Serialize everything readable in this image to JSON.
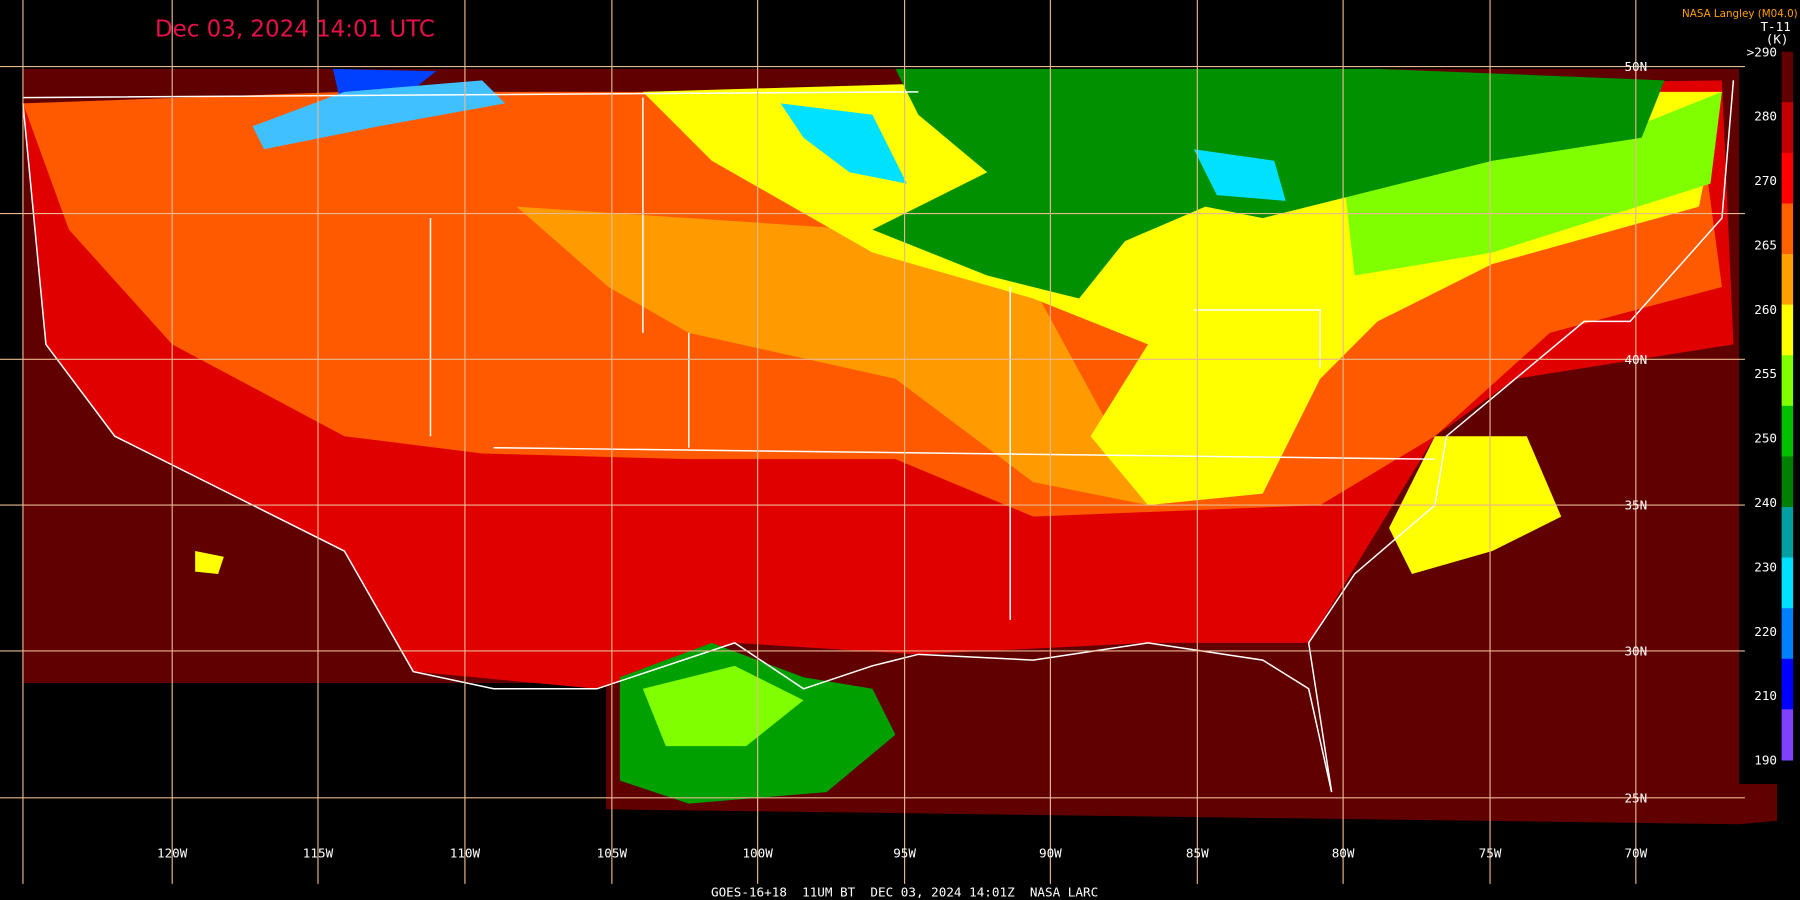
{
  "header": {
    "timestamp": "Dec 03, 2024 14:01 UTC",
    "source": "NASA Langley (M04.0)",
    "product": "T-11",
    "unit": "(K)"
  },
  "footer": "GOES-16+18  11UM BT  DEC 03, 2024 14:01Z  NASA LARC",
  "longitude_labels": [
    "120W",
    "115W",
    "110W",
    "105W",
    "100W",
    "95W",
    "90W",
    "85W",
    "80W",
    "75W",
    "70W"
  ],
  "latitude_labels": [
    "50N",
    "40N",
    "35N",
    "30N",
    "25N"
  ],
  "colorbar": {
    "labels": [
      ">290",
      "280",
      "270",
      "265",
      "260",
      "255",
      "250",
      "240",
      "230",
      "220",
      "210",
      "190"
    ],
    "colors": [
      "#600000",
      "#c00000",
      "#ff0000",
      "#ff6000",
      "#ffa000",
      "#ffff00",
      "#80ff00",
      "#00c000",
      "#008000",
      "#00a0a0",
      "#00e0ff",
      "#0080ff",
      "#0000ff",
      "#8040ff"
    ]
  }
}
